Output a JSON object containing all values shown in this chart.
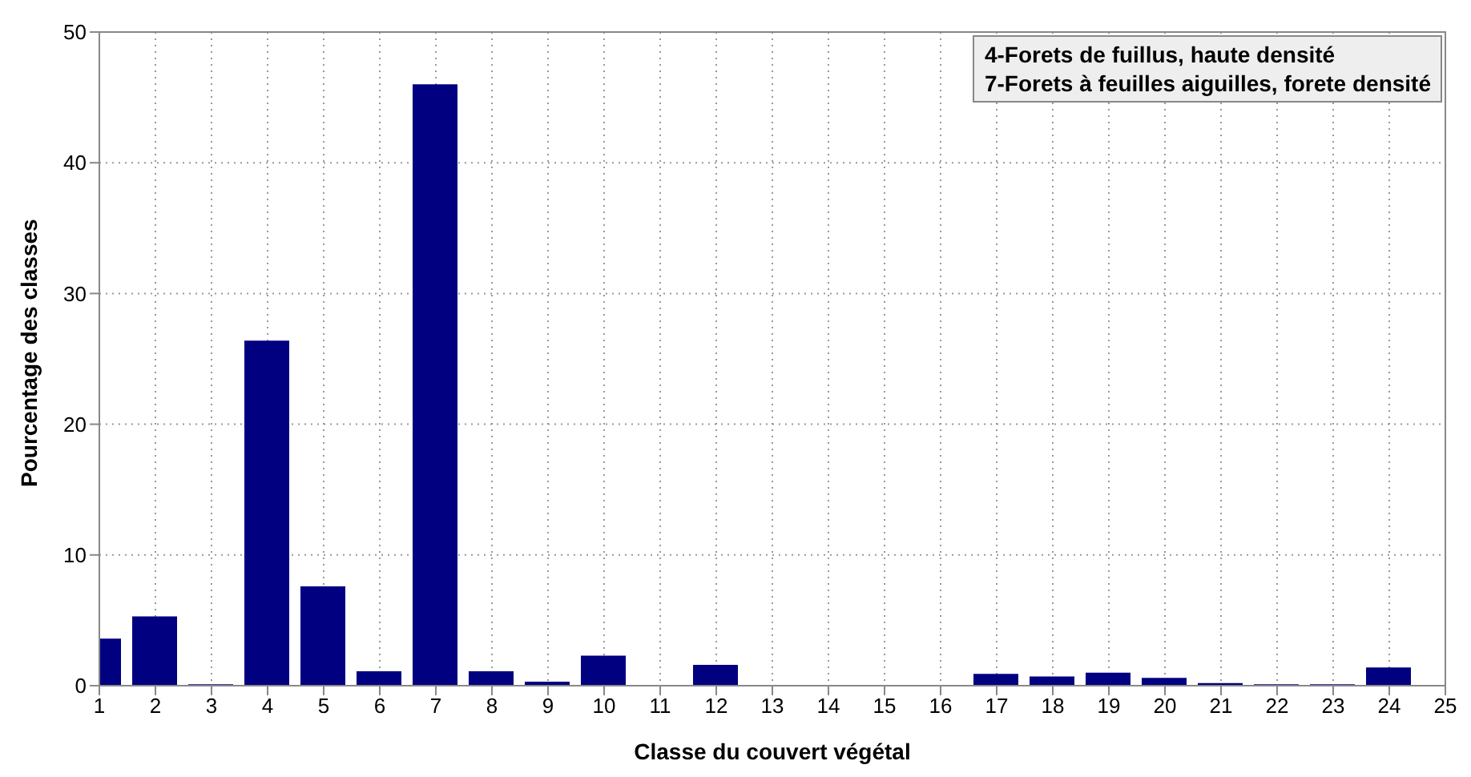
{
  "chart_data": {
    "type": "bar",
    "xlabel": "Classe du couvert végétal",
    "ylabel": "Pourcentage des classes",
    "annotations": [
      "4-Forets de fuillus, haute densité",
      "7-Forets à feuilles aiguilles, forete densité"
    ],
    "x": [
      1,
      2,
      3,
      4,
      5,
      6,
      7,
      8,
      9,
      10,
      11,
      12,
      13,
      14,
      15,
      16,
      17,
      18,
      19,
      20,
      21,
      22,
      23,
      24
    ],
    "values": [
      3.6,
      5.3,
      0.1,
      26.4,
      7.6,
      1.1,
      46,
      1.1,
      0.3,
      2.3,
      0,
      1.6,
      0,
      0,
      0,
      0,
      0.9,
      0.7,
      1.0,
      0.6,
      0.2,
      0.1,
      0.1,
      1.4
    ],
    "color": "#000080",
    "xlim": [
      1,
      25
    ],
    "xticks": [
      1,
      2,
      3,
      4,
      5,
      6,
      7,
      8,
      9,
      10,
      11,
      12,
      13,
      14,
      15,
      16,
      17,
      18,
      19,
      20,
      21,
      22,
      23,
      24,
      25
    ],
    "ylim": [
      0,
      50
    ],
    "yticks": [
      0,
      10,
      20,
      30,
      40,
      50
    ],
    "grid": true
  }
}
